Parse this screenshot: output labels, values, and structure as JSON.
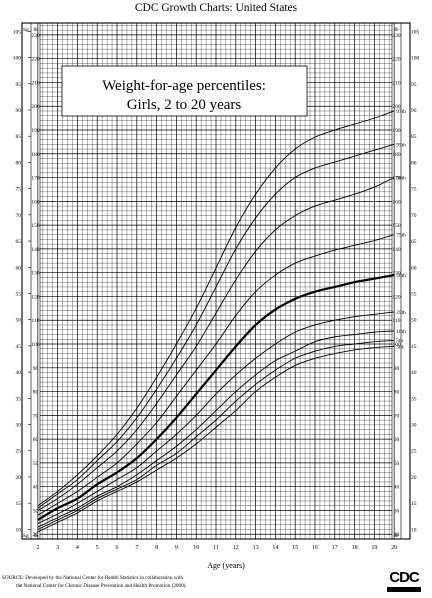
{
  "chart_data": {
    "type": "line",
    "title": "CDC Growth Charts: United States",
    "subtitle_line1": "Weight-for-age percentiles:",
    "subtitle_line2": "Girls, 2 to 20 years",
    "xlabel": "Age (years)",
    "kg_unit": "kg",
    "lb_unit": "lb",
    "x_ticks": [
      2,
      3,
      4,
      5,
      6,
      7,
      8,
      9,
      10,
      11,
      12,
      13,
      14,
      15,
      16,
      17,
      18,
      19,
      20
    ],
    "kg_ticks": [
      10,
      15,
      20,
      25,
      30,
      35,
      40,
      45,
      50,
      55,
      60,
      65,
      70,
      75,
      80,
      85,
      90,
      95,
      100,
      105
    ],
    "lb_ticks_left": [
      20,
      30,
      40,
      50,
      60,
      70,
      80,
      90,
      100,
      110,
      120,
      130,
      140,
      150,
      160,
      170,
      180,
      190,
      200,
      210,
      220,
      230
    ],
    "lb_ticks_right": [
      20,
      30,
      40,
      50,
      60,
      70,
      80,
      90,
      100,
      110,
      120,
      130,
      140,
      150,
      160,
      170,
      180,
      190,
      200,
      210,
      220,
      230
    ],
    "xlim": [
      1.2,
      20.8
    ],
    "ylim_lb": [
      18,
      235
    ],
    "grid": true,
    "x": [
      2,
      3,
      4,
      5,
      6,
      7,
      8,
      9,
      10,
      11,
      12,
      13,
      14,
      15,
      16,
      17,
      18,
      19,
      20
    ],
    "series": [
      {
        "name": "3rd",
        "values": [
          21,
          25,
          29,
          34,
          38,
          42,
          47,
          52,
          58,
          65,
          72,
          80,
          86,
          91,
          94,
          96,
          97.5,
          98.5,
          99
        ]
      },
      {
        "name": "5th",
        "values": [
          22,
          26,
          30,
          35,
          39,
          43,
          49,
          54,
          61,
          68,
          76,
          83,
          89,
          94,
          97,
          99,
          100,
          101,
          101.5
        ]
      },
      {
        "name": "10th",
        "values": [
          23,
          27,
          31,
          36,
          40,
          45,
          51,
          57,
          64,
          72,
          80,
          87,
          93,
          97,
          101,
          103,
          104,
          105,
          105.5
        ]
      },
      {
        "name": "25th",
        "values": [
          24.5,
          28.5,
          33,
          38,
          43,
          48,
          55,
          62,
          70,
          79,
          87,
          94,
          100,
          105,
          108,
          110,
          111.5,
          112.5,
          113.5
        ]
      },
      {
        "name": "50th",
        "values": [
          26,
          31,
          35,
          41,
          46,
          52,
          60,
          69,
          79,
          89,
          99,
          108,
          114.5,
          119,
          122,
          124,
          126,
          127.5,
          129
        ]
      },
      {
        "name": "75th",
        "values": [
          28,
          33,
          38,
          44,
          50,
          58,
          67,
          78,
          89,
          100,
          112,
          122,
          129,
          134,
          137,
          139.5,
          141.5,
          143.5,
          146
        ]
      },
      {
        "name": "90th",
        "values": [
          30,
          35,
          41,
          48,
          55,
          64,
          75,
          87,
          99,
          113,
          127,
          139,
          148,
          154,
          158,
          160.5,
          163,
          166,
          170
        ]
      },
      {
        "name": "95th",
        "values": [
          31,
          37,
          43,
          51,
          59,
          69,
          81,
          94,
          108,
          124,
          140,
          153,
          163,
          170,
          174,
          176.5,
          179,
          181.5,
          184
        ]
      },
      {
        "name": "97th",
        "values": [
          32,
          38,
          45,
          53,
          62,
          73,
          86,
          100,
          115,
          132,
          149,
          163,
          174,
          182,
          187,
          190,
          192.5,
          195,
          198
        ]
      }
    ],
    "highlight_series": "50th"
  },
  "source_line1": "SOURCE: Developed by the National Center for Health Statistics in collaboration with",
  "source_line2": "the National Center for Chronic Disease Prevention and Health Promotion (2000).",
  "logo_text": "CDC"
}
